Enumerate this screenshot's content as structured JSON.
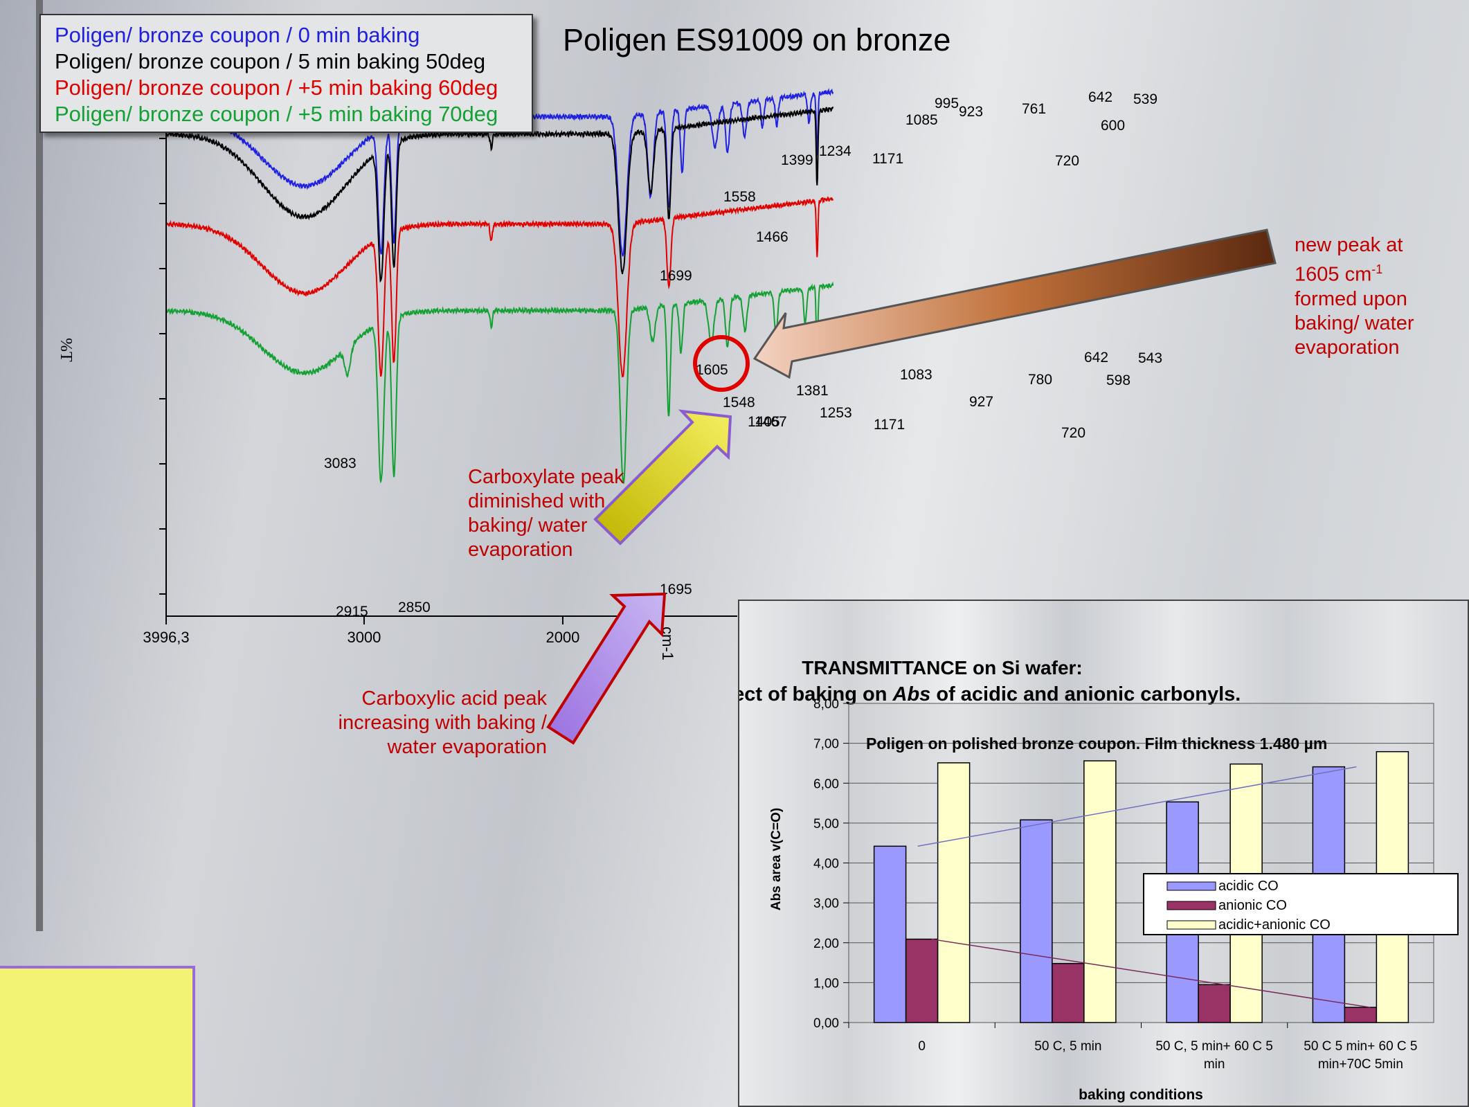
{
  "title": "Poligen ES91009 on bronze",
  "legend": [
    {
      "label": "Poligen/ bronze coupon / 0 min baking",
      "color": "#2020e0"
    },
    {
      "label": "Poligen/ bronze coupon / 5 min baking 50deg",
      "color": "#000000"
    },
    {
      "label": "Poligen/ bronze coupon / +5 min baking 60deg",
      "color": "#e00000"
    },
    {
      "label": "Poligen/ bronze coupon / +5 min baking 70deg",
      "color": "#13a034"
    }
  ],
  "notes": {
    "new_peak": [
      "new peak at",
      "1605 cm",
      "formed upon",
      "baking/ water",
      "evaporation"
    ],
    "new_peak_sup": "-1",
    "carboxylate": [
      "Carboxylate peak",
      "diminished with",
      "baking/ water",
      "evaporation"
    ],
    "carboxylic": [
      "Carboxylic acid peak",
      "increasing with baking /",
      "water evaporation"
    ]
  },
  "chart_data": [
    {
      "type": "line",
      "title": "Poligen ES91009 on bronze",
      "ylabel": "%T",
      "xlabel": "cm-1",
      "x_ticks": [
        "3996,3",
        "3000",
        "2000"
      ],
      "xlim": [
        3996.3,
        1000
      ],
      "series": [
        {
          "name": "Poligen/ bronze coupon / 0 min baking",
          "color": "#2020e0",
          "peaks": [
            2915,
            2850,
            1699,
            1558,
            1466,
            1399,
            1234,
            1171,
            1085,
            995,
            923,
            761,
            720,
            642,
            600,
            539
          ]
        },
        {
          "name": "Poligen/ bronze coupon / 5 min baking 50deg",
          "color": "#000000",
          "peaks": [
            2915,
            2850,
            1699,
            1558,
            1466,
            720
          ]
        },
        {
          "name": "Poligen/ bronze coupon / +5 min baking 60deg",
          "color": "#e00000",
          "peaks": [
            2915,
            2850,
            1699,
            1466,
            720
          ]
        },
        {
          "name": "Poligen/ bronze coupon / +5 min baking 70deg",
          "color": "#13a034",
          "peaks": [
            3083,
            2915,
            2850,
            1695,
            1605,
            1548,
            1467,
            1405,
            1381,
            1253,
            1171,
            1083,
            927,
            780,
            720,
            642,
            598,
            543
          ]
        }
      ],
      "peak_labels": [
        "2915",
        "2850",
        "3083",
        "1695",
        "1699",
        "1605",
        "1548",
        "1558",
        "1466",
        "1467",
        "1405",
        "1381",
        "1399",
        "1253",
        "1234",
        "1171",
        "1171",
        "1085",
        "1083",
        "995",
        "923",
        "927",
        "761",
        "780",
        "720",
        "720",
        "642",
        "642",
        "600",
        "598",
        "539",
        "543"
      ]
    },
    {
      "type": "bar",
      "title": "TRANSMITTANCE on Si wafer:",
      "subtitle_parts": [
        "effect of baking on ",
        "Abs",
        " of acidic and anionic carbonyls."
      ],
      "annotation": "Poligen on polished bronze coupon. Film thickness 1.480 µm",
      "ylabel": "Abs area  v(C=O)",
      "xlabel": "baking conditions",
      "ylim": [
        0,
        8
      ],
      "y_ticks": [
        "0,00",
        "1,00",
        "2,00",
        "3,00",
        "4,00",
        "5,00",
        "6,00",
        "7,00",
        "8,00"
      ],
      "categories": [
        [
          "0"
        ],
        [
          "50 C, 5 min"
        ],
        [
          "50 C, 5 min+ 60 C 5",
          "min"
        ],
        [
          "50 C 5 min+ 60 C 5",
          "min+70C 5min"
        ]
      ],
      "series": [
        {
          "name": "acidic CO",
          "color": "#9999ff",
          "values": [
            4.42,
            5.08,
            5.53,
            6.41
          ]
        },
        {
          "name": "anionic CO",
          "color": "#993366",
          "values": [
            2.09,
            1.48,
            0.95,
            0.38
          ]
        },
        {
          "name": "acidic+anionic CO",
          "color": "#ffffcc",
          "values": [
            6.51,
            6.56,
            6.48,
            6.79
          ]
        }
      ],
      "legend_position": "right",
      "grid": true
    }
  ]
}
